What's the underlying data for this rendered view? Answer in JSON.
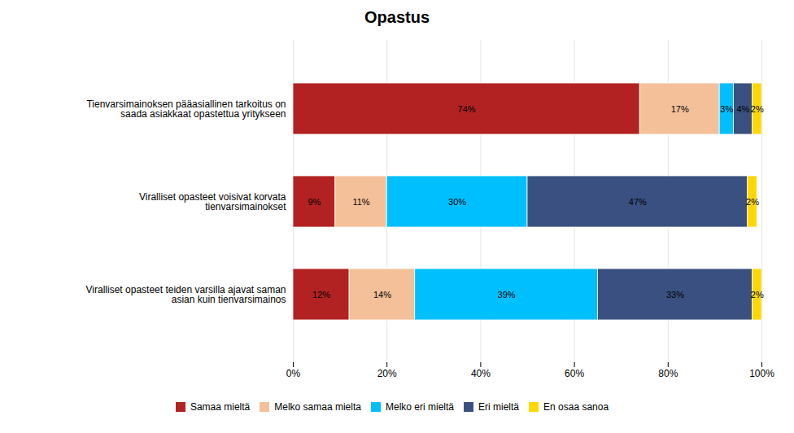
{
  "chart_data": {
    "type": "bar",
    "title": "Opastus",
    "orientation": "horizontal",
    "stacked": true,
    "categories": [
      "Tienvarsimainoksen pääasiallinen tarkoitus on\nsaada asiakkaat opastettua yritykseen",
      "Viralliset opasteet voisivat korvata\ntienvarsimainokset",
      "Viralliset opasteet teiden varsilla ajavat saman\nasian kuin tienvarsimainos"
    ],
    "series": [
      {
        "name": "Samaa mieltä",
        "color": "#b22222",
        "values": [
          74,
          9,
          12
        ],
        "value_labels": [
          "74%",
          "9%",
          "12%"
        ]
      },
      {
        "name": "Melko samaa mielta",
        "color": "#f4c09a",
        "values": [
          17,
          11,
          14
        ],
        "value_labels": [
          "17%",
          "11%",
          "14%"
        ]
      },
      {
        "name": "Melko eri mieltä",
        "color": "#00bfff",
        "values": [
          3,
          30,
          39
        ],
        "value_labels": [
          "3%",
          "30%",
          "39%"
        ]
      },
      {
        "name": "Eri mieltä",
        "color": "#3a5080",
        "values": [
          4,
          47,
          33
        ],
        "value_labels": [
          "4%",
          "47%",
          "33%"
        ]
      },
      {
        "name": "En osaa sanoa",
        "color": "#ffd700",
        "values": [
          2,
          2,
          2
        ],
        "value_labels": [
          "2%",
          "2%",
          "2%"
        ]
      }
    ],
    "xlim": [
      0,
      100
    ],
    "xticks": [
      {
        "value": 0,
        "label": "0%"
      },
      {
        "value": 20,
        "label": "20%"
      },
      {
        "value": 40,
        "label": "40%"
      },
      {
        "value": 60,
        "label": "60%"
      },
      {
        "value": 80,
        "label": "80%"
      },
      {
        "value": 100,
        "label": "100%"
      }
    ],
    "grid": true,
    "data_labels": true,
    "legend": "bottom"
  }
}
